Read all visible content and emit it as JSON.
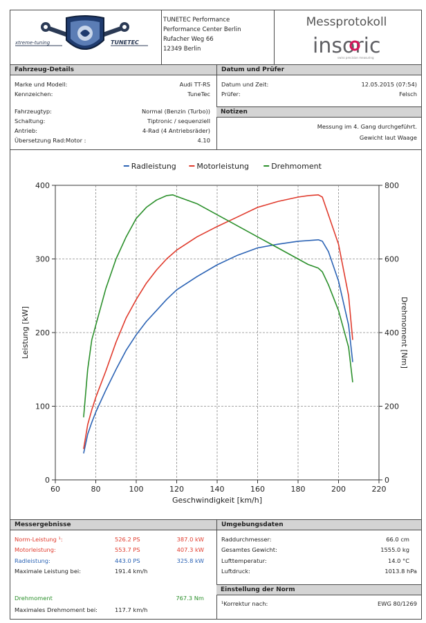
{
  "header": {
    "logo_left_text": "TUNETEC",
    "logo_tag": "xtreme-tuning",
    "company_lines": [
      "TUNETEC Performance",
      "Performance Center Berlin",
      "Rufacher Weg 66",
      "12349 Berlin"
    ],
    "report_title": "Messprotokoll",
    "brand": "insoric",
    "brand_tagline": "swiss precision measuring"
  },
  "vehicle": {
    "title": "Fahrzeug-Details",
    "rows": [
      {
        "label": "Marke und Modell:",
        "value": "Audi TT-RS"
      },
      {
        "label": "Kennzeichen:",
        "value": "TuneTec"
      },
      {
        "label": "Fahrzeugtyp:",
        "value": "Normal (Benzin (Turbo))"
      },
      {
        "label": "Schaltung:",
        "value": "Tiptronic / sequenziell"
      },
      {
        "label": "Antrieb:",
        "value": "4-Rad (4 Antriebsräder)"
      },
      {
        "label": "Übersetzung Rad:Motor :",
        "value": "4.10"
      }
    ]
  },
  "date": {
    "title": "Datum und Prüfer",
    "rows": [
      {
        "label": "Datum und Zeit:",
        "value": "12.05.2015 (07:54)"
      },
      {
        "label": "Prüfer:",
        "value": "Felsch"
      }
    ]
  },
  "notes": {
    "title": "Notizen",
    "lines": [
      "Messung im 4. Gang durchgeführt.",
      "Gewicht laut Waage"
    ]
  },
  "chart_data": {
    "type": "line",
    "title": "",
    "xlabel": "Geschwindigkeit [km/h]",
    "ylabel": "Leistung [kW]",
    "y2label": "Drehmoment [Nm]",
    "xlim": [
      60,
      220
    ],
    "ylim": [
      0,
      400
    ],
    "y2lim": [
      0,
      800
    ],
    "xticks": [
      60,
      80,
      100,
      120,
      140,
      160,
      180,
      200,
      220
    ],
    "yticks": [
      0,
      100,
      200,
      300,
      400
    ],
    "y2ticks": [
      0,
      200,
      400,
      600,
      800
    ],
    "grid": true,
    "legend_position": "top-center",
    "series": [
      {
        "name": "Radleistung",
        "axis": "left",
        "color": "#2a62b4",
        "x": [
          74,
          76,
          78,
          80,
          85,
          90,
          95,
          100,
          105,
          110,
          115,
          120,
          130,
          140,
          150,
          160,
          170,
          180,
          185,
          190,
          192,
          195,
          200,
          205,
          207
        ],
        "y": [
          36,
          62,
          78,
          92,
          122,
          150,
          176,
          197,
          215,
          230,
          245,
          258,
          276,
          292,
          305,
          315,
          320,
          324,
          325,
          326,
          324,
          310,
          270,
          210,
          160
        ]
      },
      {
        "name": "Motorleistung",
        "axis": "left",
        "color": "#e03a2c",
        "x": [
          74,
          76,
          78,
          80,
          85,
          90,
          95,
          100,
          105,
          110,
          115,
          120,
          130,
          140,
          150,
          160,
          170,
          180,
          185,
          190,
          192,
          195,
          200,
          205,
          207
        ],
        "y": [
          42,
          75,
          95,
          112,
          148,
          187,
          220,
          245,
          267,
          285,
          300,
          312,
          330,
          344,
          357,
          370,
          378,
          384,
          386,
          387,
          384,
          360,
          320,
          250,
          190
        ]
      },
      {
        "name": "Drehmoment",
        "axis": "right",
        "color": "#2a8f2a",
        "x": [
          74,
          76,
          78,
          80,
          85,
          90,
          95,
          100,
          105,
          110,
          115,
          118,
          120,
          130,
          140,
          150,
          160,
          170,
          180,
          185,
          190,
          192,
          195,
          200,
          205,
          207
        ],
        "y": [
          170,
          300,
          380,
          420,
          520,
          600,
          660,
          710,
          740,
          760,
          772,
          774,
          770,
          750,
          720,
          690,
          660,
          630,
          600,
          585,
          575,
          565,
          530,
          460,
          360,
          265
        ]
      }
    ]
  },
  "results": {
    "title": "Messergebnisse",
    "rows": [
      {
        "label": "Norm-Leistung ¹:",
        "ps": "526.2 PS",
        "kw": "387.0 kW",
        "style": "red"
      },
      {
        "label": "Motorleistung:",
        "ps": "553.7 PS",
        "kw": "407.3 kW",
        "style": "red"
      },
      {
        "label": "Radleistung:",
        "ps": "443.0 PS",
        "kw": "325.8 kW",
        "style": "blue"
      },
      {
        "label": "Maximale Leistung bei:",
        "ps": "191.4 km/h",
        "kw": "",
        "style": "plain"
      }
    ],
    "torque_label": "Drehmoment",
    "torque_value": "767.3 Nm",
    "torque_at_label": "Maximales Drehmoment bei:",
    "torque_at_value": "117.7 km/h"
  },
  "environment": {
    "title": "Umgebungsdaten",
    "rows": [
      {
        "label": "Raddurchmesser:",
        "value": "66.0 cm"
      },
      {
        "label": "Gesamtes Gewicht:",
        "value": "1555.0 kg"
      },
      {
        "label": "Lufttemperatur:",
        "value": "14.0 °C"
      },
      {
        "label": "Luftdruck:",
        "value": "1013.8 hPa"
      }
    ]
  },
  "norm": {
    "title": "Einstellung der Norm",
    "label": "¹Korrektur nach:",
    "value": "EWG 80/1269"
  }
}
